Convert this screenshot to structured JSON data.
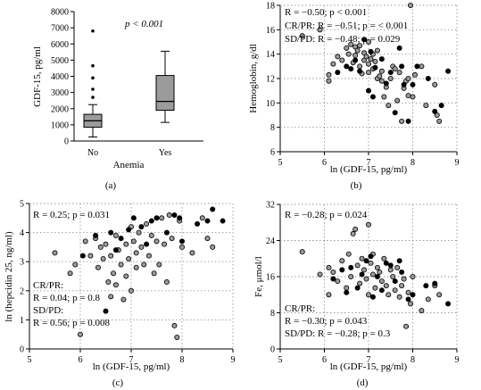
{
  "chart_data": [
    {
      "id": "a",
      "type": "box",
      "panel_label": "(a)",
      "xlabel": "Anemia",
      "ylabel": "GDF-15, pg/ml",
      "ylim": [
        0,
        8000
      ],
      "yticks": [
        0,
        1000,
        2000,
        3000,
        4000,
        5000,
        6000,
        7000,
        8000
      ],
      "annotation": {
        "text": "p < 0.001"
      },
      "categories": [
        "No",
        "Yes"
      ],
      "boxes": [
        {
          "category": "No",
          "whisker_low": 250,
          "q1": 850,
          "median": 1250,
          "q3": 1650,
          "whisker_high": 2250,
          "outliers": [
            2700,
            3200,
            3900,
            4650,
            6800
          ]
        },
        {
          "category": "Yes",
          "whisker_low": 1150,
          "q1": 1900,
          "median": 2450,
          "q3": 4050,
          "whisker_high": 5550,
          "outliers": []
        }
      ]
    },
    {
      "id": "b",
      "type": "scatter",
      "panel_label": "(b)",
      "xlabel": "ln (GDF-15, pg/ml)",
      "ylabel": "Hemoglobin, g/dl",
      "xlim": [
        5,
        9
      ],
      "ylim": [
        6,
        18
      ],
      "xticks": [
        5,
        6,
        7,
        8,
        9
      ],
      "yticks": [
        6,
        8,
        10,
        12,
        14,
        16,
        18
      ],
      "annotations": [
        {
          "text": "R = −0.50; p < 0.001"
        },
        {
          "text": "CR/PR: R = −0.51; p = < 0.001"
        },
        {
          "text": "SD/PD: R = −0.48; p = 0.029"
        }
      ],
      "series": [
        {
          "marker": "grey",
          "points": [
            [
              5.5,
              15.5
            ],
            [
              5.9,
              16
            ],
            [
              6.1,
              12.3
            ],
            [
              6.1,
              11.8
            ],
            [
              6.2,
              13.2
            ],
            [
              6.3,
              13.8
            ],
            [
              6.4,
              13.5
            ],
            [
              6.5,
              14.5
            ],
            [
              6.55,
              14
            ],
            [
              6.6,
              14.8
            ],
            [
              6.65,
              13.3
            ],
            [
              6.7,
              14.6
            ],
            [
              6.7,
              13.9
            ],
            [
              6.75,
              14.3
            ],
            [
              6.8,
              14.7
            ],
            [
              6.8,
              13
            ],
            [
              6.85,
              12.4
            ],
            [
              6.9,
              13.5
            ],
            [
              6.9,
              14.1
            ],
            [
              6.95,
              13.8
            ],
            [
              7,
              13.2
            ],
            [
              7,
              12.5
            ],
            [
              7,
              15
            ],
            [
              7.05,
              13.6
            ],
            [
              7.1,
              14
            ],
            [
              7.1,
              12.8
            ],
            [
              7.15,
              13.4
            ],
            [
              7.2,
              12
            ],
            [
              7.2,
              14.3
            ],
            [
              7.25,
              12.2
            ],
            [
              7.3,
              11.8
            ],
            [
              7.3,
              12.6
            ],
            [
              7.35,
              10.5
            ],
            [
              7.4,
              11.3
            ],
            [
              7.45,
              9.8
            ],
            [
              7.5,
              12
            ],
            [
              7.55,
              13
            ],
            [
              7.6,
              12.8
            ],
            [
              7.65,
              10.2
            ],
            [
              7.7,
              12.5
            ],
            [
              7.75,
              8.5
            ],
            [
              7.8,
              11.2
            ],
            [
              7.85,
              11.8
            ],
            [
              7.9,
              12
            ],
            [
              7.9,
              10.6
            ],
            [
              7.95,
              18
            ],
            [
              8.0,
              10.5
            ],
            [
              8.05,
              12.3
            ],
            [
              8.2,
              13
            ],
            [
              8.3,
              9.8
            ],
            [
              8.5,
              11.5
            ],
            [
              8.55,
              9
            ],
            [
              8.6,
              8.5
            ]
          ]
        },
        {
          "marker": "black",
          "points": [
            [
              6.3,
              12.5
            ],
            [
              6.5,
              13
            ],
            [
              6.6,
              12.8
            ],
            [
              6.7,
              13.5
            ],
            [
              6.8,
              12.6
            ],
            [
              6.9,
              15.2
            ],
            [
              7.0,
              11
            ],
            [
              7.05,
              14.2
            ],
            [
              7.1,
              10.5
            ],
            [
              7.15,
              12.9
            ],
            [
              7.3,
              13.6
            ],
            [
              7.4,
              11.6
            ],
            [
              7.5,
              12.5
            ],
            [
              7.6,
              9.2
            ],
            [
              7.7,
              14.5
            ],
            [
              7.75,
              13
            ],
            [
              7.8,
              11.5
            ],
            [
              7.9,
              8.5
            ],
            [
              8.0,
              11.5
            ],
            [
              8.1,
              13
            ],
            [
              8.35,
              12
            ],
            [
              8.5,
              9.3
            ],
            [
              8.65,
              9.8
            ],
            [
              8.8,
              12.6
            ]
          ]
        }
      ]
    },
    {
      "id": "c",
      "type": "scatter",
      "panel_label": "(c)",
      "xlabel": "ln (GDF-15, pg/ml)",
      "ylabel": "ln (hepcidin 25, ng/ml)",
      "xlim": [
        5,
        9
      ],
      "ylim": [
        0,
        5
      ],
      "xticks": [
        5,
        6,
        7,
        8,
        9
      ],
      "yticks": [
        0,
        1,
        2,
        3,
        4,
        5
      ],
      "annotations": [
        {
          "text": "R = 0.25; p = 0.031"
        },
        {
          "text": "CR/PR:"
        },
        {
          "text": "R = 0.04; p = 0.8"
        },
        {
          "text": "SD/PD:"
        },
        {
          "text": "R = 0.56; p = 0.008"
        }
      ],
      "series": [
        {
          "marker": "grey",
          "points": [
            [
              5.5,
              3.3
            ],
            [
              5.8,
              2.6
            ],
            [
              5.9,
              2.9
            ],
            [
              6.0,
              0.5
            ],
            [
              6.1,
              3.7
            ],
            [
              6.2,
              3.2
            ],
            [
              6.3,
              3.8
            ],
            [
              6.35,
              2.8
            ],
            [
              6.4,
              3.5
            ],
            [
              6.45,
              3.1
            ],
            [
              6.5,
              3.6
            ],
            [
              6.55,
              2.3
            ],
            [
              6.6,
              3.2
            ],
            [
              6.6,
              1.8
            ],
            [
              6.65,
              2.6
            ],
            [
              6.7,
              3.9
            ],
            [
              6.7,
              2.2
            ],
            [
              6.75,
              3.4
            ],
            [
              6.8,
              2.9
            ],
            [
              6.85,
              1.7
            ],
            [
              6.9,
              3.6
            ],
            [
              6.9,
              2.5
            ],
            [
              6.95,
              3.1
            ],
            [
              7.0,
              4.2
            ],
            [
              7.0,
              2.0
            ],
            [
              7.05,
              3.7
            ],
            [
              7.1,
              3.3
            ],
            [
              7.1,
              2.8
            ],
            [
              7.15,
              4.0
            ],
            [
              7.2,
              3.5
            ],
            [
              7.25,
              2.9
            ],
            [
              7.3,
              4.3
            ],
            [
              7.35,
              3.2
            ],
            [
              7.4,
              3.9
            ],
            [
              7.45,
              2.6
            ],
            [
              7.5,
              3.7
            ],
            [
              7.55,
              2.9
            ],
            [
              7.6,
              4.5
            ],
            [
              7.65,
              3.6
            ],
            [
              7.7,
              2.3
            ],
            [
              7.75,
              4.6
            ],
            [
              7.8,
              3.8
            ],
            [
              7.85,
              0.8
            ],
            [
              7.9,
              0.4
            ],
            [
              7.95,
              4.4
            ],
            [
              8.0,
              3.5
            ],
            [
              8.2,
              3.3
            ],
            [
              8.4,
              4.5
            ],
            [
              8.5,
              3.8
            ],
            [
              8.6,
              3.5
            ]
          ]
        },
        {
          "marker": "black",
          "points": [
            [
              6.05,
              3.2
            ],
            [
              6.3,
              3.9
            ],
            [
              6.5,
              1.3
            ],
            [
              6.6,
              4.0
            ],
            [
              6.7,
              3.4
            ],
            [
              6.8,
              3.8
            ],
            [
              6.95,
              4.1
            ],
            [
              7.05,
              4.5
            ],
            [
              7.2,
              4.2
            ],
            [
              7.3,
              3.6
            ],
            [
              7.4,
              4.4
            ],
            [
              7.5,
              4.5
            ],
            [
              7.7,
              4.0
            ],
            [
              7.85,
              4.6
            ],
            [
              7.95,
              4.5
            ],
            [
              8.0,
              3.7
            ],
            [
              8.3,
              4.3
            ],
            [
              8.5,
              4.4
            ],
            [
              8.6,
              4.8
            ],
            [
              8.8,
              4.4
            ]
          ]
        }
      ]
    },
    {
      "id": "d",
      "type": "scatter",
      "panel_label": "(d)",
      "xlabel": "ln (GDF-15, pg/ml)",
      "ylabel": "Fe, μmol/l",
      "xlim": [
        5,
        9
      ],
      "ylim": [
        0,
        32
      ],
      "xticks": [
        5,
        6,
        7,
        8,
        9
      ],
      "yticks": [
        0,
        8,
        16,
        24,
        32
      ],
      "annotations": [
        {
          "text": "R = −0.28; p = 0.024"
        },
        {
          "text": "CR/PR:"
        },
        {
          "text": "R = −0.30; p = 0.043"
        },
        {
          "text": "SD/PD: R = −0.28; p = 0.3"
        }
      ],
      "series": [
        {
          "marker": "grey",
          "points": [
            [
              5.5,
              21.5
            ],
            [
              5.9,
              16.5
            ],
            [
              6.1,
              18
            ],
            [
              6.1,
              12
            ],
            [
              6.2,
              17
            ],
            [
              6.3,
              15
            ],
            [
              6.4,
              19.5
            ],
            [
              6.5,
              13.5
            ],
            [
              6.55,
              21
            ],
            [
              6.6,
              16
            ],
            [
              6.65,
              25.5
            ],
            [
              6.7,
              26.5
            ],
            [
              6.75,
              18.5
            ],
            [
              6.8,
              14.5
            ],
            [
              6.85,
              20
            ],
            [
              6.9,
              17.5
            ],
            [
              6.95,
              15.5
            ],
            [
              7.0,
              27.5
            ],
            [
              7.0,
              12
            ],
            [
              7.05,
              19
            ],
            [
              7.1,
              16.5
            ],
            [
              7.1,
              21
            ],
            [
              7.15,
              13.5
            ],
            [
              7.2,
              18
            ],
            [
              7.25,
              17
            ],
            [
              7.3,
              15
            ],
            [
              7.35,
              20
            ],
            [
              7.4,
              14
            ],
            [
              7.45,
              12
            ],
            [
              7.5,
              17.5
            ],
            [
              7.55,
              16
            ],
            [
              7.6,
              13
            ],
            [
              7.65,
              18
            ],
            [
              7.7,
              11.5
            ],
            [
              7.75,
              14
            ],
            [
              7.8,
              15.5
            ],
            [
              7.85,
              5
            ],
            [
              7.9,
              12.5
            ],
            [
              7.95,
              10
            ],
            [
              8.0,
              16
            ],
            [
              8.2,
              8.5
            ],
            [
              8.35,
              11
            ],
            [
              8.5,
              14
            ],
            [
              8.6,
              12
            ]
          ]
        },
        {
          "marker": "black",
          "points": [
            [
              6.2,
              15.5
            ],
            [
              6.4,
              17.5
            ],
            [
              6.5,
              12.5
            ],
            [
              6.6,
              18
            ],
            [
              6.75,
              13.5
            ],
            [
              6.85,
              16.5
            ],
            [
              6.95,
              19.5
            ],
            [
              7.05,
              20.5
            ],
            [
              7.1,
              11.5
            ],
            [
              7.2,
              16
            ],
            [
              7.3,
              13
            ],
            [
              7.4,
              19
            ],
            [
              7.5,
              18.5
            ],
            [
              7.6,
              15
            ],
            [
              7.7,
              19.5
            ],
            [
              7.75,
              17
            ],
            [
              7.9,
              11
            ],
            [
              8.0,
              12
            ],
            [
              8.3,
              14
            ],
            [
              8.5,
              14.5
            ],
            [
              8.8,
              10
            ]
          ]
        }
      ]
    }
  ]
}
